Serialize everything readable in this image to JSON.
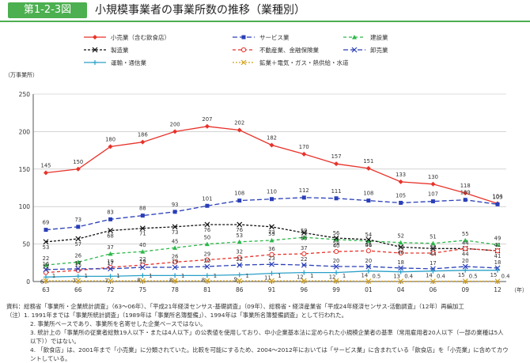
{
  "header": {
    "badge": "第1-2-3図",
    "title": "小規模事業者の事業所数の推移（業種別）"
  },
  "chart_data": {
    "type": "line",
    "title": "小規模事業者の事業所数の推移（業種別）",
    "ylabel": "（万事業所）",
    "xlabel": "（年）",
    "ylim": [
      0,
      250
    ],
    "yticks": [
      0,
      50,
      100,
      150,
      200,
      250
    ],
    "grid": true,
    "legend_position": "top",
    "categories": [
      "63",
      "66",
      "72",
      "75",
      "78",
      "81",
      "86",
      "91",
      "96",
      "99",
      "01",
      "04",
      "06",
      "09",
      "12"
    ],
    "series": [
      {
        "name": "小売業（含む飲食店）",
        "color": "#e8322a",
        "dash": "",
        "marker": "diamond",
        "values": [
          145,
          150,
          180,
          186,
          200,
          207,
          202,
          182,
          170,
          157,
          151,
          133,
          130,
          118,
          104
        ]
      },
      {
        "name": "サービス業",
        "color": "#2a3fb8",
        "dash": "6,3",
        "marker": "square",
        "values": [
          69,
          73,
          83,
          88,
          93,
          101,
          108,
          110,
          112,
          111,
          108,
          105,
          107,
          109,
          103
        ]
      },
      {
        "name": "建設業",
        "color": "#2db84a",
        "dash": "4,3",
        "marker": "triangle",
        "values": [
          22,
          26,
          37,
          40,
          45,
          50,
          53,
          55,
          59,
          56,
          54,
          52,
          51,
          55,
          49
        ]
      },
      {
        "name": "製造業",
        "color": "#111111",
        "dash": "3,2",
        "marker": "x",
        "values": [
          53,
          57,
          68,
          71,
          73,
          76,
          76,
          73,
          65,
          58,
          56,
          46,
          44,
          44,
          41
        ]
      },
      {
        "name": "不動産業、金融保険業",
        "color": "#e8322a",
        "dash": "4,3",
        "marker": "circle",
        "values": [
          12,
          15,
          19,
          22,
          26,
          29,
          32,
          36,
          37,
          40,
          41,
          38,
          38,
          44,
          41
        ]
      },
      {
        "name": "卸売業",
        "color": "#2a3fb8",
        "dash": "6,3",
        "marker": "x",
        "values": [
          16,
          17,
          17,
          19,
          19,
          20,
          22,
          23,
          22,
          20,
          20,
          18,
          17,
          20,
          18
        ]
      },
      {
        "name": "運輸・通信業",
        "color": "#2aa0c8",
        "dash": "",
        "marker": "plus",
        "values": [
          6,
          7,
          7,
          8,
          8,
          8,
          9,
          11,
          12,
          12,
          14,
          13,
          14,
          15,
          15
        ]
      },
      {
        "name": "鉱業＋電気・ガス・熱供給・水道",
        "color": "#d4a017",
        "dash": "2,2",
        "marker": "x",
        "values": [
          1,
          1,
          1,
          1,
          1,
          1,
          1,
          1,
          1,
          1,
          0.5,
          0.4,
          0.4,
          0.5,
          0.4
        ]
      }
    ],
    "value_labels": [
      [
        "145",
        "150",
        "180",
        "186",
        "200",
        "207",
        "202",
        "182",
        "170",
        "157",
        "151",
        "133",
        "130",
        "118",
        "104"
      ],
      [
        "69",
        "73",
        "83",
        "88",
        "93",
        "101",
        "108",
        "110",
        "112",
        "111",
        "108",
        "105",
        "107",
        "109",
        "103"
      ],
      [
        "22",
        "26",
        "37",
        "40",
        "45",
        "50",
        "53",
        "55",
        "59",
        "56",
        "54",
        "52",
        "51",
        "55",
        "49"
      ],
      [
        "53",
        "57",
        "68",
        "71",
        "73",
        "76",
        "76",
        "73",
        "65",
        "58",
        "56",
        "46",
        "44",
        "44",
        "41"
      ],
      [
        "12",
        "15",
        "19",
        "22",
        "26",
        "29",
        "32",
        "36",
        "37",
        "40",
        "41",
        "38",
        "38",
        "44",
        "41"
      ],
      [
        "16",
        "17",
        "17",
        "19",
        "19",
        "20",
        "22",
        "23",
        "22",
        "20",
        "20",
        "18",
        "17",
        "20",
        "18"
      ],
      [
        "6",
        "7",
        "7",
        "8",
        "8",
        "8",
        "9",
        "11",
        "12",
        "12",
        "14",
        "13",
        "14",
        "15",
        "15"
      ],
      [
        "1",
        "1",
        "1",
        "1",
        "1",
        "1",
        "1",
        "1",
        "1",
        "1",
        "0.5",
        "0.4",
        "0.4",
        "0.5",
        "0.4"
      ]
    ]
  },
  "notes": [
    "資料：総務省「事業所・企業統計調査」（63〜06年）、「平成21年経済センサス-基礎調査」（09年）、総務省・経済産業省「平成24年経済センサス-活動調査」（12年）再編加工",
    "（注）1. 1991年までは「事業所統計調査」（1989年は「事業所名簿整備」）、1994年は「事業所名簿整備調査」として行われた。",
    "2. 事業所ベースであり、事業所を名寄せした企業ベースではない。",
    "3. 統計上の「事業所の従業者総数19人以下・または4人以下」の公表値を使用しており、中小企業基本法に定められた小規模企業者の基準（常用雇用者20人以下（一部の業種は5人",
    "以下））ではない。",
    "4. 「飲食店」は、2001年まで「小売業」に分類されていた。比較を可能にするため、2004〜2012年においては「サービス業」に含まれている「飲食店」を「小売業」に含めてカウ",
    "ントしている。"
  ]
}
